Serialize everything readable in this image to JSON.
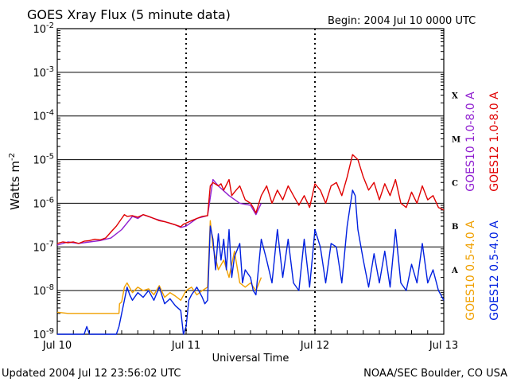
{
  "chart_data": {
    "type": "line",
    "title": "GOES Xray Flux (5 minute data)",
    "begin_label": "Begin:  2004 Jul 10 0000 UTC",
    "ylabel": "Watts m",
    "ylabel_sup": "-2",
    "xlabel": "Universal Time",
    "y_scale": "log",
    "ylim": [
      1e-09,
      0.01
    ],
    "y_ticks": [
      {
        "base": "10",
        "exp": "-2",
        "value": 0.01
      },
      {
        "base": "10",
        "exp": "-3",
        "value": 0.001
      },
      {
        "base": "10",
        "exp": "-4",
        "value": 0.0001
      },
      {
        "base": "10",
        "exp": "-5",
        "value": 1e-05
      },
      {
        "base": "10",
        "exp": "-6",
        "value": 1e-06
      },
      {
        "base": "10",
        "exp": "-7",
        "value": 1e-07
      },
      {
        "base": "10",
        "exp": "-8",
        "value": 1e-08
      },
      {
        "base": "10",
        "exp": "-9",
        "value": 1e-09
      }
    ],
    "x_range_hours": [
      0,
      72
    ],
    "x_ticks": [
      {
        "label": "Jul 10",
        "hour": 0
      },
      {
        "label": "Jul 11",
        "hour": 24
      },
      {
        "label": "Jul 12",
        "hour": 48
      },
      {
        "label": "Jul 13",
        "hour": 72
      }
    ],
    "flare_classes": [
      {
        "label": "X",
        "value": 0.0003
      },
      {
        "label": "M",
        "value": 3e-05
      },
      {
        "label": "C",
        "value": 3e-06
      },
      {
        "label": "B",
        "value": 3e-07
      },
      {
        "label": "A",
        "value": 3e-08
      }
    ],
    "grid": "horizontal lines at each decade, dashed verticals at day boundaries",
    "series": [
      {
        "name": "GOES10 1.0-8.0 A",
        "color": "#9020d0",
        "points": [
          [
            0,
            1.1e-07
          ],
          [
            2,
            1.3e-07
          ],
          [
            4,
            1.2e-07
          ],
          [
            6,
            1.3e-07
          ],
          [
            8,
            1.4e-07
          ],
          [
            10,
            1.6e-07
          ],
          [
            12,
            2.5e-07
          ],
          [
            14,
            5e-07
          ],
          [
            15,
            4.5e-07
          ],
          [
            16,
            5.5e-07
          ],
          [
            18,
            4.5e-07
          ],
          [
            20,
            3.8e-07
          ],
          [
            22,
            3.2e-07
          ],
          [
            23,
            2.8e-07
          ],
          [
            24,
            3e-07
          ],
          [
            26,
            4.5e-07
          ],
          [
            28,
            5.2e-07
          ],
          [
            29,
            3.5e-06
          ],
          [
            30,
            2.5e-06
          ],
          [
            32,
            1.5e-06
          ],
          [
            34,
            1e-06
          ],
          [
            36,
            9e-07
          ],
          [
            37,
            5.5e-07
          ],
          [
            38,
            1e-06
          ]
        ]
      },
      {
        "name": "GOES12 1.0-8.0 A",
        "color": "#e00000",
        "points": [
          [
            0,
            1.2e-07
          ],
          [
            1,
            1.3e-07
          ],
          [
            2,
            1.25e-07
          ],
          [
            3,
            1.3e-07
          ],
          [
            4,
            1.2e-07
          ],
          [
            5,
            1.35e-07
          ],
          [
            6,
            1.4e-07
          ],
          [
            7,
            1.5e-07
          ],
          [
            8,
            1.45e-07
          ],
          [
            9,
            1.6e-07
          ],
          [
            10,
            2.2e-07
          ],
          [
            11,
            3e-07
          ],
          [
            12,
            4.5e-07
          ],
          [
            12.5,
            5.5e-07
          ],
          [
            13,
            5e-07
          ],
          [
            14,
            5.2e-07
          ],
          [
            15,
            4.8e-07
          ],
          [
            16,
            5.5e-07
          ],
          [
            17,
            5e-07
          ],
          [
            18,
            4.5e-07
          ],
          [
            19,
            4e-07
          ],
          [
            20,
            3.8e-07
          ],
          [
            21,
            3.5e-07
          ],
          [
            22,
            3.2e-07
          ],
          [
            23,
            2.9e-07
          ],
          [
            23.5,
            3.3e-07
          ],
          [
            24,
            3.5e-07
          ],
          [
            25,
            4e-07
          ],
          [
            26,
            4.5e-07
          ],
          [
            27,
            5e-07
          ],
          [
            28,
            5.2e-07
          ],
          [
            28.5,
            2.5e-06
          ],
          [
            29,
            3e-06
          ],
          [
            30,
            2.5e-06
          ],
          [
            30.5,
            2.8e-06
          ],
          [
            31,
            2e-06
          ],
          [
            32,
            3.5e-06
          ],
          [
            32.5,
            1.5e-06
          ],
          [
            33,
            1.8e-06
          ],
          [
            34,
            2.5e-06
          ],
          [
            35,
            1.2e-06
          ],
          [
            36,
            1e-06
          ],
          [
            36.5,
            8e-07
          ],
          [
            37,
            6e-07
          ],
          [
            38,
            1.5e-06
          ],
          [
            39,
            2.5e-06
          ],
          [
            40,
            1e-06
          ],
          [
            41,
            2e-06
          ],
          [
            42,
            1.2e-06
          ],
          [
            43,
            2.5e-06
          ],
          [
            44,
            1.5e-06
          ],
          [
            45,
            9e-07
          ],
          [
            46,
            1.5e-06
          ],
          [
            47,
            8e-07
          ],
          [
            48,
            2.8e-06
          ],
          [
            49,
            2e-06
          ],
          [
            50,
            1e-06
          ],
          [
            51,
            2.5e-06
          ],
          [
            52,
            3e-06
          ],
          [
            53,
            1.5e-06
          ],
          [
            54,
            4e-06
          ],
          [
            55,
            1.3e-05
          ],
          [
            56,
            1e-05
          ],
          [
            57,
            4e-06
          ],
          [
            58,
            2e-06
          ],
          [
            59,
            3e-06
          ],
          [
            60,
            1.2e-06
          ],
          [
            61,
            2.8e-06
          ],
          [
            62,
            1.5e-06
          ],
          [
            63,
            3.5e-06
          ],
          [
            64,
            1e-06
          ],
          [
            65,
            8e-07
          ],
          [
            66,
            1.8e-06
          ],
          [
            67,
            1e-06
          ],
          [
            68,
            2.5e-06
          ],
          [
            69,
            1.2e-06
          ],
          [
            70,
            1.5e-06
          ],
          [
            71,
            8e-07
          ],
          [
            72,
            7e-07
          ]
        ]
      },
      {
        "name": "GOES10 0.5-4.0 A",
        "color": "#f0a000",
        "points": [
          [
            0,
            3.2e-09
          ],
          [
            2,
            3e-09
          ],
          [
            4,
            3e-09
          ],
          [
            6,
            3e-09
          ],
          [
            8,
            3e-09
          ],
          [
            10,
            3e-09
          ],
          [
            11.5,
            3e-09
          ],
          [
            11.6,
            5e-09
          ],
          [
            12,
            5.5e-09
          ],
          [
            12.5,
            1.2e-08
          ],
          [
            13,
            1.5e-08
          ],
          [
            14,
            9e-09
          ],
          [
            15,
            1.2e-08
          ],
          [
            16,
            1e-08
          ],
          [
            17,
            1.1e-08
          ],
          [
            18,
            8e-09
          ],
          [
            19,
            1.3e-08
          ],
          [
            20,
            7e-09
          ],
          [
            21,
            9e-09
          ],
          [
            22,
            7.5e-09
          ],
          [
            23,
            6e-09
          ],
          [
            24,
            1e-08
          ],
          [
            25,
            1.2e-08
          ],
          [
            26,
            8e-09
          ],
          [
            27,
            1e-08
          ],
          [
            28,
            1.2e-08
          ],
          [
            28.5,
            4e-07
          ],
          [
            29,
            1e-07
          ],
          [
            30,
            3e-08
          ],
          [
            31,
            5e-08
          ],
          [
            32,
            2e-08
          ],
          [
            33,
            8e-08
          ],
          [
            34,
            1.5e-08
          ],
          [
            35,
            1.2e-08
          ],
          [
            36,
            1.5e-08
          ],
          [
            37,
            1e-08
          ],
          [
            38,
            2e-08
          ]
        ]
      },
      {
        "name": "GOES12 0.5-4.0 A",
        "color": "#0020e0",
        "points": [
          [
            0,
            5e-10
          ],
          [
            2,
            5e-10
          ],
          [
            5,
            5e-10
          ],
          [
            5.5,
            1.5e-09
          ],
          [
            6,
            5e-10
          ],
          [
            8,
            5e-10
          ],
          [
            10,
            5e-10
          ],
          [
            11,
            5e-10
          ],
          [
            11.5,
            1.5e-09
          ],
          [
            12,
            3e-09
          ],
          [
            12.5,
            6e-09
          ],
          [
            13,
            1.2e-08
          ],
          [
            13.5,
            8e-09
          ],
          [
            14,
            6e-09
          ],
          [
            15,
            9e-09
          ],
          [
            16,
            7e-09
          ],
          [
            17,
            1e-08
          ],
          [
            18,
            6e-09
          ],
          [
            19,
            1.2e-08
          ],
          [
            20,
            5e-09
          ],
          [
            21,
            6.5e-09
          ],
          [
            22,
            4.5e-09
          ],
          [
            23,
            3.5e-09
          ],
          [
            23.5,
            1e-09
          ],
          [
            24,
            1.5e-09
          ],
          [
            24.5,
            6e-09
          ],
          [
            25,
            8e-09
          ],
          [
            26,
            1.2e-08
          ],
          [
            27,
            7e-09
          ],
          [
            27.5,
            5e-09
          ],
          [
            28,
            6e-09
          ],
          [
            28.5,
            3e-07
          ],
          [
            29,
            1.5e-07
          ],
          [
            29.5,
            3e-08
          ],
          [
            30,
            2e-07
          ],
          [
            30.5,
            5e-08
          ],
          [
            31,
            1.5e-07
          ],
          [
            31.5,
            3e-08
          ],
          [
            32,
            2.5e-07
          ],
          [
            32.5,
            2e-08
          ],
          [
            33,
            6e-08
          ],
          [
            34,
            1.2e-07
          ],
          [
            34.5,
            1.5e-08
          ],
          [
            35,
            3e-08
          ],
          [
            36,
            2e-08
          ],
          [
            36.5,
            1e-08
          ],
          [
            37,
            8e-09
          ],
          [
            38,
            1.5e-07
          ],
          [
            39,
            5e-08
          ],
          [
            40,
            1.5e-08
          ],
          [
            41,
            2.5e-07
          ],
          [
            42,
            2e-08
          ],
          [
            43,
            1.5e-07
          ],
          [
            44,
            1.5e-08
          ],
          [
            45,
            1e-08
          ],
          [
            46,
            1.5e-07
          ],
          [
            47,
            1.2e-08
          ],
          [
            48,
            2.5e-07
          ],
          [
            49,
            1e-07
          ],
          [
            50,
            1.5e-08
          ],
          [
            51,
            1.2e-07
          ],
          [
            52,
            1e-07
          ],
          [
            53,
            1.5e-08
          ],
          [
            54,
            3e-07
          ],
          [
            55,
            2e-06
          ],
          [
            55.5,
            1.5e-06
          ],
          [
            56,
            2.5e-07
          ],
          [
            57,
            5e-08
          ],
          [
            58,
            1.2e-08
          ],
          [
            59,
            7e-08
          ],
          [
            60,
            1.5e-08
          ],
          [
            61,
            8e-08
          ],
          [
            62,
            1.2e-08
          ],
          [
            63,
            2.5e-07
          ],
          [
            64,
            1.5e-08
          ],
          [
            65,
            1e-08
          ],
          [
            66,
            4e-08
          ],
          [
            67,
            1.5e-08
          ],
          [
            68,
            1.2e-07
          ],
          [
            69,
            1.5e-08
          ],
          [
            70,
            3e-08
          ],
          [
            71,
            1e-08
          ],
          [
            72,
            6e-09
          ]
        ]
      }
    ]
  },
  "footer": {
    "updated": "Updated 2004 Jul 12 23:56:02 UTC",
    "source": "NOAA/SEC Boulder, CO USA"
  }
}
